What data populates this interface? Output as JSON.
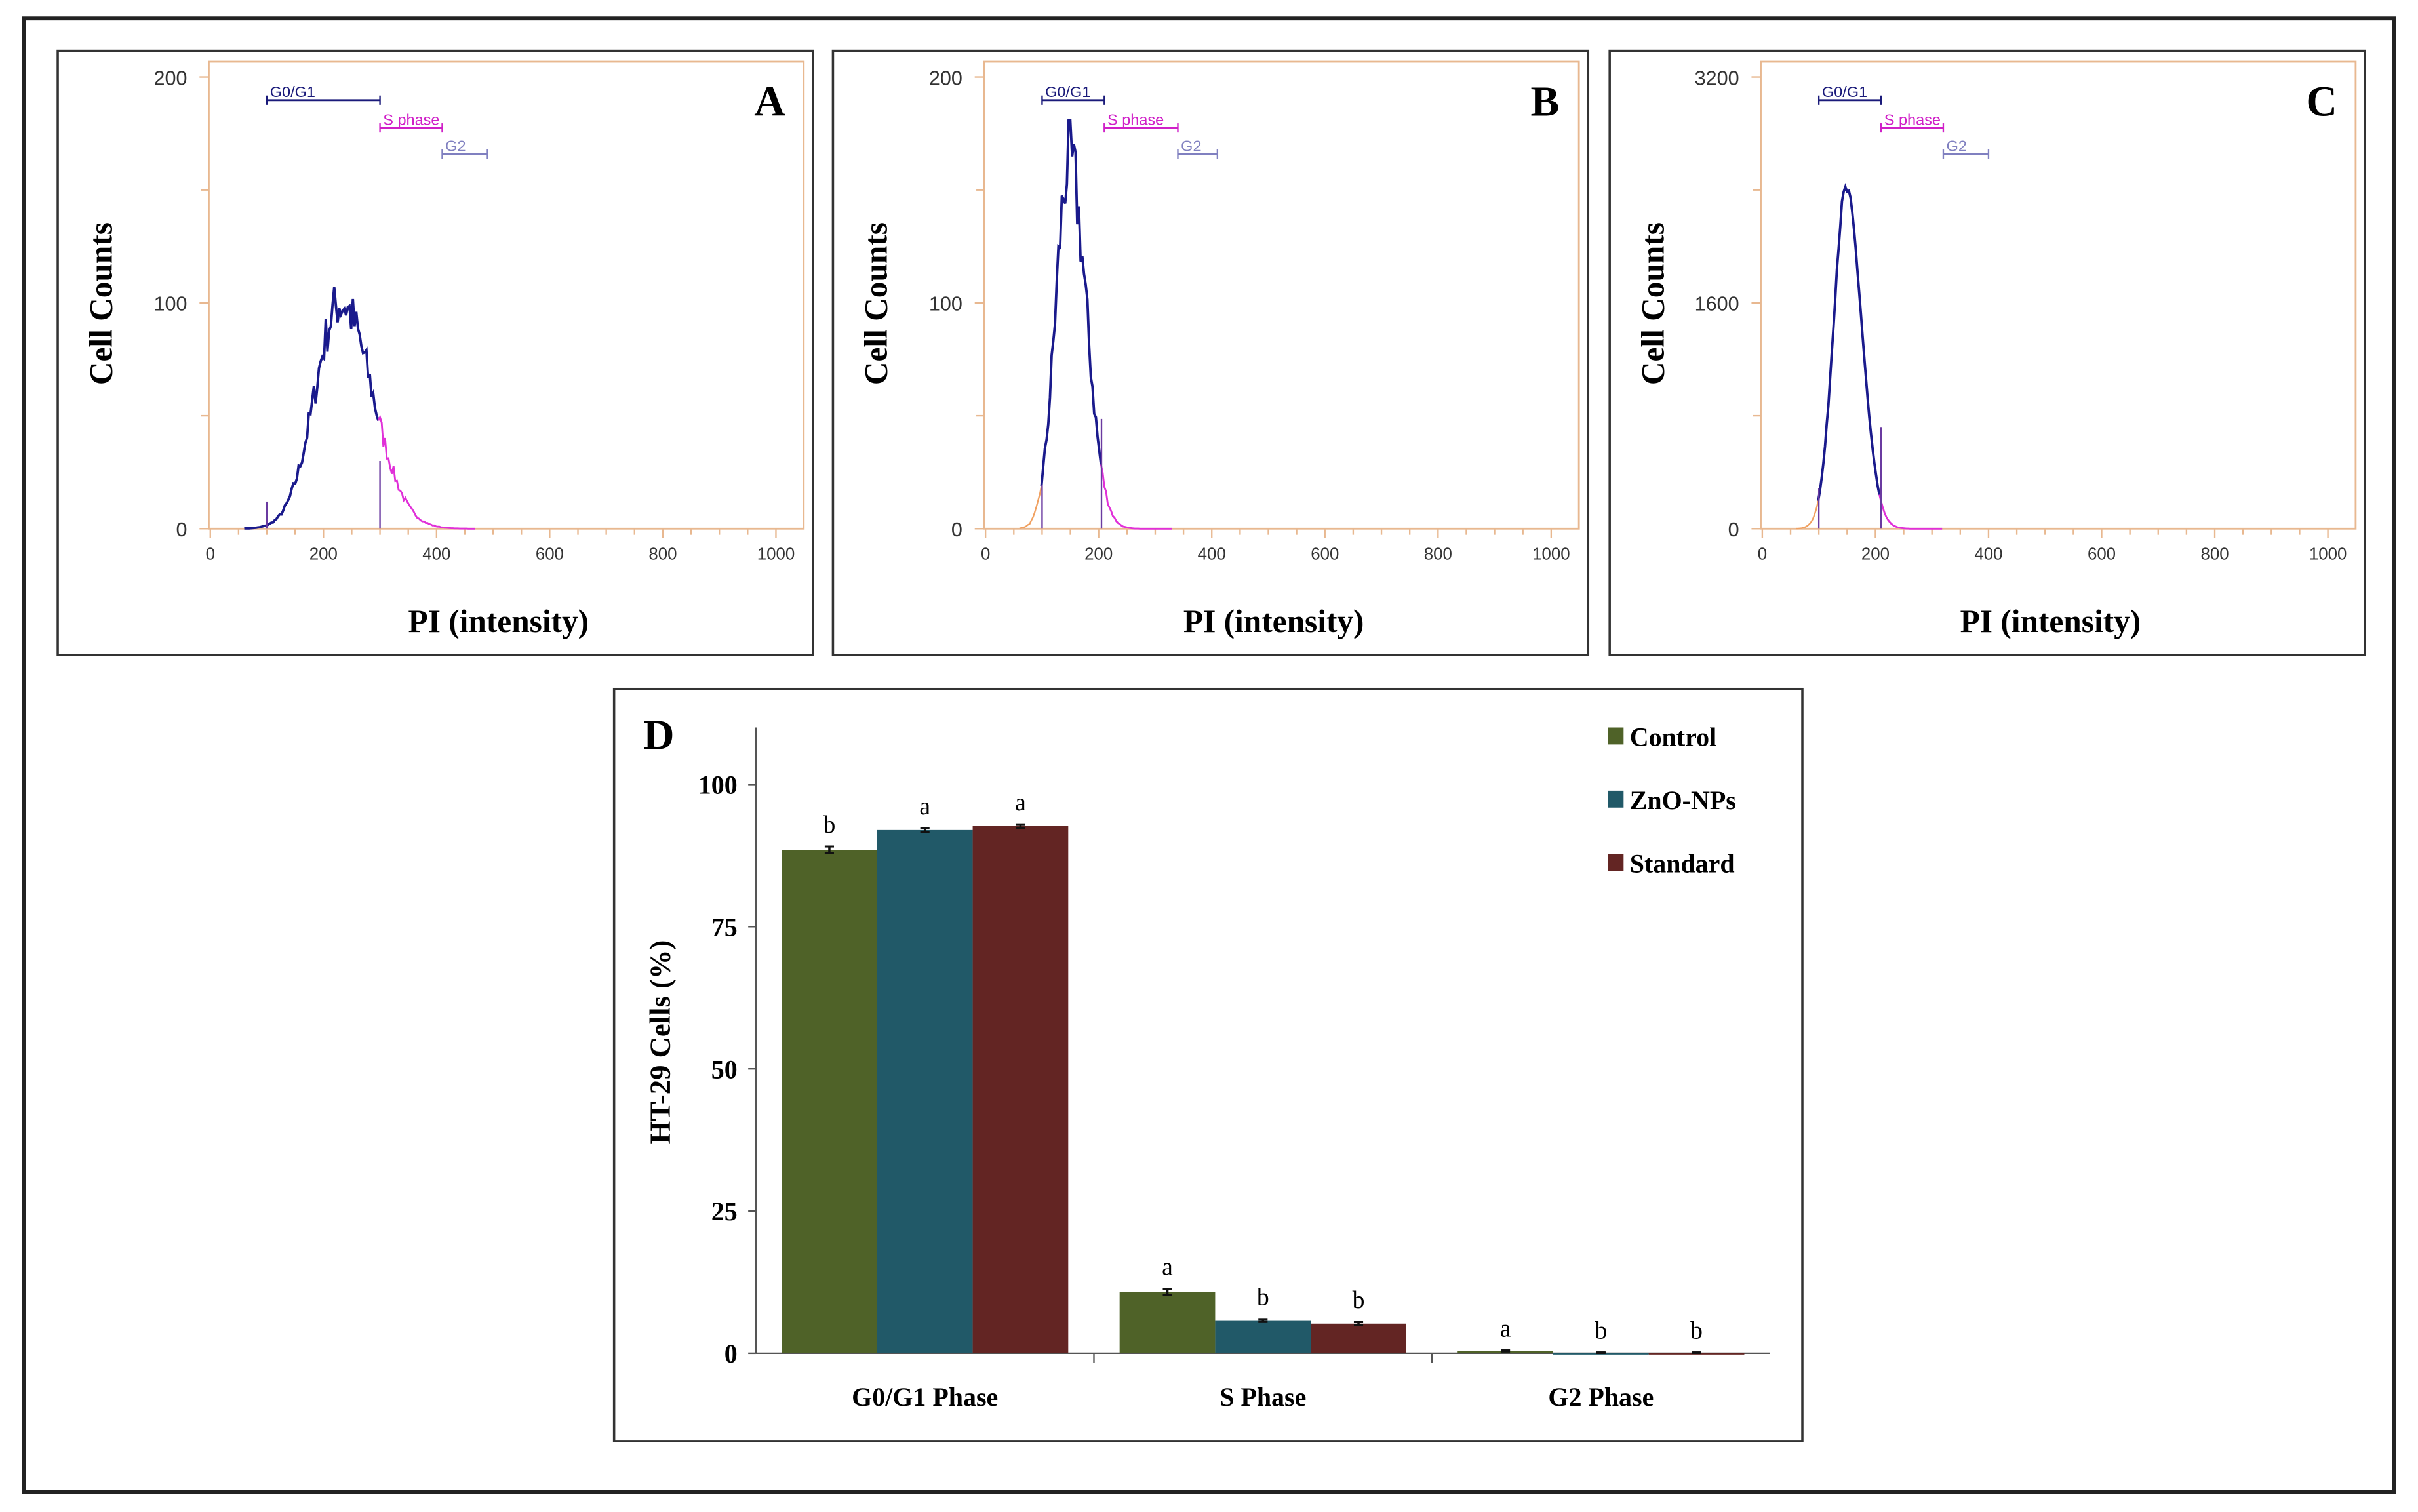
{
  "chart_data": [
    {
      "type": "histogram",
      "panel_label": "A",
      "xlabel": "PI (intensity)",
      "ylabel": "Cell Counts",
      "xlim": [
        0,
        1000
      ],
      "ylim": [
        0,
        200
      ],
      "x_ticks": [
        "0",
        "200",
        "400",
        "600",
        "800",
        "1000"
      ],
      "y_ticks": [
        "0",
        "100",
        "200"
      ],
      "gates": [
        {
          "name": "G0/G1",
          "range": [
            100,
            300
          ],
          "color": "#1a1a7a"
        },
        {
          "name": "S phase",
          "range": [
            300,
            410
          ],
          "color": "#d020c8"
        },
        {
          "name": "G2",
          "range": [
            410,
            490
          ],
          "color": "#8080c0"
        }
      ],
      "distribution": {
        "mode": 230,
        "peak": 100,
        "sd": 45,
        "s_start": 300,
        "end": 470
      }
    },
    {
      "type": "histogram",
      "panel_label": "B",
      "xlabel": "PI (intensity)",
      "ylabel": "Cell Counts",
      "xlim": [
        0,
        1000
      ],
      "ylim": [
        0,
        200
      ],
      "x_ticks": [
        "0",
        "200",
        "400",
        "600",
        "800",
        "1000"
      ],
      "y_ticks": [
        "0",
        "100",
        "200"
      ],
      "gates": [
        {
          "name": "G0/G1",
          "range": [
            100,
            210
          ],
          "color": "#1a1a7a"
        },
        {
          "name": "S phase",
          "range": [
            210,
            340
          ],
          "color": "#d020c8"
        },
        {
          "name": "G2",
          "range": [
            340,
            410
          ],
          "color": "#8080c0"
        }
      ],
      "distribution": {
        "mode": 148,
        "peak": 162,
        "sd": 24,
        "s_start": 205,
        "end": 330
      }
    },
    {
      "type": "histogram",
      "panel_label": "C",
      "xlabel": "PI (intensity)",
      "ylabel": "Cell Counts",
      "xlim": [
        0,
        1000
      ],
      "ylim": [
        0,
        3200
      ],
      "x_ticks": [
        "0",
        "200",
        "400",
        "600",
        "800",
        "1000"
      ],
      "y_ticks": [
        "0",
        "1600",
        "3200"
      ],
      "gates": [
        {
          "name": "G0/G1",
          "range": [
            100,
            210
          ],
          "color": "#1a1a7a"
        },
        {
          "name": "S phase",
          "range": [
            210,
            320
          ],
          "color": "#d020c8"
        },
        {
          "name": "G2",
          "range": [
            320,
            400
          ],
          "color": "#8080c0"
        }
      ],
      "distribution": {
        "mode": 148,
        "peak": 2400,
        "sd": 22,
        "s_start": 210,
        "end": 320
      }
    },
    {
      "type": "bar",
      "panel_label": "D",
      "title": "",
      "xlabel": "",
      "ylabel": "HT-29 Cells (%)",
      "ylim": [
        0,
        110
      ],
      "y_ticks": [
        "0",
        "25",
        "50",
        "75",
        "100"
      ],
      "categories": [
        "G0/G1 Phase",
        "S Phase",
        "G2 Phase"
      ],
      "legend_position": "top-right",
      "series": [
        {
          "name": "Control",
          "color": "#4f6228",
          "values": [
            88.5,
            10.8,
            0.4
          ],
          "errors": [
            0.6,
            0.5,
            0.1
          ],
          "letters": [
            "b",
            "a",
            "a"
          ]
        },
        {
          "name": "ZnO-NPs",
          "color": "#215968",
          "values": [
            92.0,
            5.8,
            0.1
          ],
          "errors": [
            0.3,
            0.2,
            0.05
          ],
          "letters": [
            "a",
            "b",
            "b"
          ]
        },
        {
          "name": "Standard",
          "color": "#632523",
          "values": [
            92.7,
            5.2,
            0.1
          ],
          "errors": [
            0.3,
            0.3,
            0.05
          ],
          "letters": [
            "a",
            "b",
            "b"
          ]
        }
      ]
    }
  ]
}
